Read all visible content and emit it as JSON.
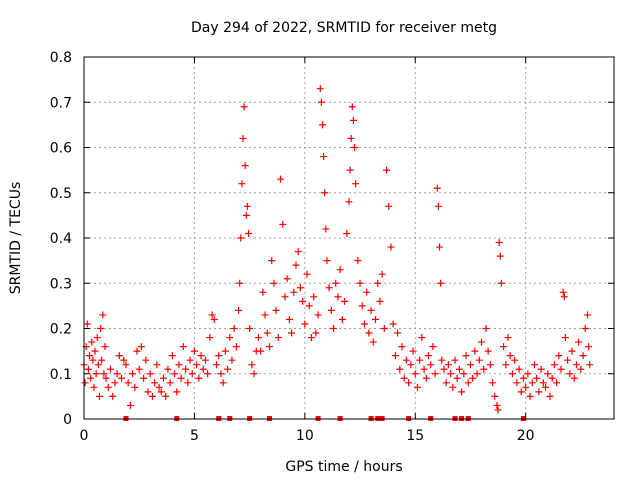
{
  "chart_data": {
    "type": "scatter",
    "title": "Day 294 of 2022, SRMTID for receiver metg",
    "xlabel": "GPS time / hours",
    "ylabel": "SRMTID / TECUs",
    "xlim": [
      0,
      24
    ],
    "ylim": [
      0,
      0.8
    ],
    "grid": true,
    "marker": "+",
    "color": "#ff0000",
    "x_ticks": [
      {
        "value": 0,
        "label": "0"
      },
      {
        "value": 5,
        "label": "5"
      },
      {
        "value": 10,
        "label": "10"
      },
      {
        "value": 15,
        "label": "15"
      },
      {
        "value": 20,
        "label": "20"
      }
    ],
    "y_ticks": [
      {
        "value": 0,
        "label": "0"
      },
      {
        "value": 0.1,
        "label": "0.1"
      },
      {
        "value": 0.2,
        "label": "0.2"
      },
      {
        "value": 0.3,
        "label": "0.3"
      },
      {
        "value": 0.4,
        "label": "0.4"
      },
      {
        "value": 0.5,
        "label": "0.5"
      },
      {
        "value": 0.6,
        "label": "0.6"
      },
      {
        "value": 0.7,
        "label": "0.7"
      },
      {
        "value": 0.8,
        "label": "0.8"
      }
    ],
    "series": [
      {
        "name": "SRMTID",
        "points": [
          [
            0.0,
            0.12
          ],
          [
            0.05,
            0.08
          ],
          [
            0.1,
            0.16
          ],
          [
            0.15,
            0.21
          ],
          [
            0.2,
            0.11
          ],
          [
            0.25,
            0.14
          ],
          [
            0.3,
            0.09
          ],
          [
            0.35,
            0.17
          ],
          [
            0.4,
            0.13
          ],
          [
            0.45,
            0.07
          ],
          [
            0.5,
            0.15
          ],
          [
            0.55,
            0.1
          ],
          [
            0.6,
            0.18
          ],
          [
            0.65,
            0.12
          ],
          [
            0.7,
            0.05
          ],
          [
            0.75,
            0.2
          ],
          [
            0.8,
            0.13
          ],
          [
            0.85,
            0.23
          ],
          [
            0.9,
            0.1
          ],
          [
            0.95,
            0.16
          ],
          [
            1.0,
            0.09
          ],
          [
            1.1,
            0.07
          ],
          [
            1.2,
            0.11
          ],
          [
            1.3,
            0.05
          ],
          [
            1.4,
            0.08
          ],
          [
            1.5,
            0.1
          ],
          [
            1.6,
            0.14
          ],
          [
            1.7,
            0.09
          ],
          [
            1.8,
            0.13
          ],
          [
            1.9,
            0.12
          ],
          [
            2.0,
            0.08
          ],
          [
            2.1,
            0.03
          ],
          [
            2.2,
            0.1
          ],
          [
            2.3,
            0.07
          ],
          [
            2.4,
            0.15
          ],
          [
            2.5,
            0.11
          ],
          [
            2.6,
            0.16
          ],
          [
            2.7,
            0.09
          ],
          [
            2.8,
            0.13
          ],
          [
            2.9,
            0.06
          ],
          [
            3.0,
            0.1
          ],
          [
            3.1,
            0.05
          ],
          [
            3.2,
            0.08
          ],
          [
            3.3,
            0.12
          ],
          [
            3.4,
            0.07
          ],
          [
            3.5,
            0.06
          ],
          [
            3.6,
            0.09
          ],
          [
            3.7,
            0.05
          ],
          [
            3.8,
            0.11
          ],
          [
            3.9,
            0.08
          ],
          [
            4.0,
            0.14
          ],
          [
            4.1,
            0.1
          ],
          [
            4.2,
            0.06
          ],
          [
            4.3,
            0.12
          ],
          [
            4.4,
            0.09
          ],
          [
            4.5,
            0.16
          ],
          [
            4.6,
            0.11
          ],
          [
            4.7,
            0.08
          ],
          [
            4.8,
            0.13
          ],
          [
            4.9,
            0.1
          ],
          [
            5.0,
            0.15
          ],
          [
            5.1,
            0.12
          ],
          [
            5.2,
            0.09
          ],
          [
            5.3,
            0.14
          ],
          [
            5.4,
            0.11
          ],
          [
            5.5,
            0.13
          ],
          [
            5.6,
            0.1
          ],
          [
            5.7,
            0.18
          ],
          [
            5.8,
            0.23
          ],
          [
            5.9,
            0.22
          ],
          [
            6.0,
            0.12
          ],
          [
            6.1,
            0.14
          ],
          [
            6.2,
            0.1
          ],
          [
            6.3,
            0.08
          ],
          [
            6.4,
            0.15
          ],
          [
            6.5,
            0.11
          ],
          [
            6.6,
            0.18
          ],
          [
            6.7,
            0.13
          ],
          [
            6.8,
            0.2
          ],
          [
            6.9,
            0.16
          ],
          [
            7.0,
            0.24
          ],
          [
            7.05,
            0.3
          ],
          [
            7.1,
            0.4
          ],
          [
            7.15,
            0.52
          ],
          [
            7.2,
            0.62
          ],
          [
            7.25,
            0.69
          ],
          [
            7.3,
            0.56
          ],
          [
            7.35,
            0.45
          ],
          [
            7.4,
            0.47
          ],
          [
            7.45,
            0.41
          ],
          [
            7.5,
            0.2
          ],
          [
            7.6,
            0.12
          ],
          [
            7.7,
            0.1
          ],
          [
            7.8,
            0.15
          ],
          [
            7.9,
            0.18
          ],
          [
            8.0,
            0.15
          ],
          [
            8.1,
            0.28
          ],
          [
            8.2,
            0.23
          ],
          [
            8.3,
            0.19
          ],
          [
            8.4,
            0.16
          ],
          [
            8.5,
            0.35
          ],
          [
            8.6,
            0.3
          ],
          [
            8.7,
            0.24
          ],
          [
            8.8,
            0.18
          ],
          [
            8.9,
            0.53
          ],
          [
            9.0,
            0.43
          ],
          [
            9.1,
            0.27
          ],
          [
            9.2,
            0.31
          ],
          [
            9.3,
            0.22
          ],
          [
            9.4,
            0.19
          ],
          [
            9.5,
            0.28
          ],
          [
            9.6,
            0.34
          ],
          [
            9.7,
            0.37
          ],
          [
            9.8,
            0.29
          ],
          [
            9.9,
            0.26
          ],
          [
            10.0,
            0.21
          ],
          [
            10.1,
            0.32
          ],
          [
            10.2,
            0.25
          ],
          [
            10.3,
            0.18
          ],
          [
            10.4,
            0.27
          ],
          [
            10.5,
            0.19
          ],
          [
            10.6,
            0.23
          ],
          [
            10.7,
            0.73
          ],
          [
            10.75,
            0.7
          ],
          [
            10.8,
            0.65
          ],
          [
            10.85,
            0.58
          ],
          [
            10.9,
            0.5
          ],
          [
            10.95,
            0.42
          ],
          [
            11.0,
            0.35
          ],
          [
            11.1,
            0.29
          ],
          [
            11.2,
            0.24
          ],
          [
            11.3,
            0.2
          ],
          [
            11.4,
            0.3
          ],
          [
            11.5,
            0.27
          ],
          [
            11.6,
            0.33
          ],
          [
            11.7,
            0.22
          ],
          [
            11.8,
            0.26
          ],
          [
            11.9,
            0.41
          ],
          [
            12.0,
            0.48
          ],
          [
            12.05,
            0.55
          ],
          [
            12.1,
            0.62
          ],
          [
            12.15,
            0.69
          ],
          [
            12.2,
            0.66
          ],
          [
            12.25,
            0.6
          ],
          [
            12.3,
            0.52
          ],
          [
            12.4,
            0.35
          ],
          [
            12.5,
            0.3
          ],
          [
            12.6,
            0.25
          ],
          [
            12.7,
            0.21
          ],
          [
            12.8,
            0.28
          ],
          [
            12.9,
            0.19
          ],
          [
            13.0,
            0.24
          ],
          [
            13.1,
            0.17
          ],
          [
            13.2,
            0.22
          ],
          [
            13.3,
            0.3
          ],
          [
            13.4,
            0.26
          ],
          [
            13.5,
            0.32
          ],
          [
            13.6,
            0.2
          ],
          [
            13.7,
            0.55
          ],
          [
            13.8,
            0.47
          ],
          [
            13.9,
            0.38
          ],
          [
            14.0,
            0.21
          ],
          [
            14.1,
            0.14
          ],
          [
            14.2,
            0.19
          ],
          [
            14.3,
            0.11
          ],
          [
            14.4,
            0.16
          ],
          [
            14.5,
            0.09
          ],
          [
            14.6,
            0.13
          ],
          [
            14.7,
            0.08
          ],
          [
            14.8,
            0.12
          ],
          [
            14.9,
            0.15
          ],
          [
            15.0,
            0.1
          ],
          [
            15.1,
            0.07
          ],
          [
            15.2,
            0.13
          ],
          [
            15.3,
            0.18
          ],
          [
            15.4,
            0.11
          ],
          [
            15.5,
            0.09
          ],
          [
            15.6,
            0.14
          ],
          [
            15.7,
            0.12
          ],
          [
            15.8,
            0.16
          ],
          [
            15.9,
            0.1
          ],
          [
            16.0,
            0.51
          ],
          [
            16.05,
            0.47
          ],
          [
            16.1,
            0.38
          ],
          [
            16.15,
            0.3
          ],
          [
            16.2,
            0.13
          ],
          [
            16.3,
            0.11
          ],
          [
            16.4,
            0.08
          ],
          [
            16.5,
            0.12
          ],
          [
            16.6,
            0.1
          ],
          [
            16.7,
            0.07
          ],
          [
            16.8,
            0.13
          ],
          [
            16.9,
            0.09
          ],
          [
            17.0,
            0.11
          ],
          [
            17.1,
            0.06
          ],
          [
            17.2,
            0.1
          ],
          [
            17.3,
            0.14
          ],
          [
            17.4,
            0.08
          ],
          [
            17.5,
            0.12
          ],
          [
            17.6,
            0.09
          ],
          [
            17.7,
            0.15
          ],
          [
            17.8,
            0.1
          ],
          [
            17.9,
            0.13
          ],
          [
            18.0,
            0.17
          ],
          [
            18.1,
            0.11
          ],
          [
            18.2,
            0.2
          ],
          [
            18.3,
            0.15
          ],
          [
            18.4,
            0.12
          ],
          [
            18.5,
            0.08
          ],
          [
            18.6,
            0.05
          ],
          [
            18.7,
            0.03
          ],
          [
            18.75,
            0.02
          ],
          [
            18.8,
            0.39
          ],
          [
            18.85,
            0.36
          ],
          [
            18.9,
            0.3
          ],
          [
            19.0,
            0.16
          ],
          [
            19.1,
            0.12
          ],
          [
            19.2,
            0.18
          ],
          [
            19.3,
            0.14
          ],
          [
            19.4,
            0.1
          ],
          [
            19.5,
            0.13
          ],
          [
            19.6,
            0.08
          ],
          [
            19.7,
            0.11
          ],
          [
            19.8,
            0.06
          ],
          [
            19.9,
            0.09
          ],
          [
            20.0,
            0.07
          ],
          [
            20.1,
            0.1
          ],
          [
            20.2,
            0.05
          ],
          [
            20.3,
            0.08
          ],
          [
            20.4,
            0.12
          ],
          [
            20.5,
            0.09
          ],
          [
            20.6,
            0.06
          ],
          [
            20.7,
            0.11
          ],
          [
            20.8,
            0.08
          ],
          [
            20.9,
            0.07
          ],
          [
            21.0,
            0.1
          ],
          [
            21.1,
            0.05
          ],
          [
            21.2,
            0.09
          ],
          [
            21.3,
            0.12
          ],
          [
            21.4,
            0.08
          ],
          [
            21.5,
            0.14
          ],
          [
            21.6,
            0.11
          ],
          [
            21.7,
            0.28
          ],
          [
            21.75,
            0.27
          ],
          [
            21.8,
            0.18
          ],
          [
            21.9,
            0.13
          ],
          [
            22.0,
            0.1
          ],
          [
            22.1,
            0.15
          ],
          [
            22.2,
            0.09
          ],
          [
            22.3,
            0.12
          ],
          [
            22.4,
            0.17
          ],
          [
            22.5,
            0.11
          ],
          [
            22.6,
            0.14
          ],
          [
            22.7,
            0.2
          ],
          [
            22.8,
            0.23
          ],
          [
            22.85,
            0.16
          ],
          [
            22.9,
            0.12
          ]
        ],
        "zero_markers": [
          1.9,
          4.2,
          6.1,
          6.6,
          7.5,
          8.4,
          10.6,
          11.6,
          13.0,
          13.3,
          13.5,
          14.7,
          15.7,
          16.8,
          17.1,
          17.4,
          19.9
        ]
      }
    ]
  }
}
